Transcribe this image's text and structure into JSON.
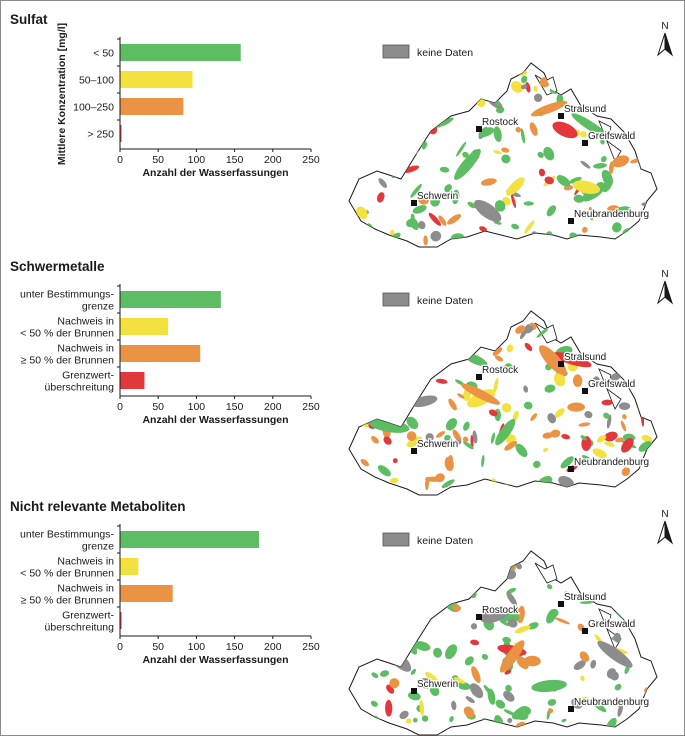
{
  "colors": {
    "green": "#5dbd63",
    "yellow": "#f2e13e",
    "orange": "#eb9345",
    "red": "#e2383b",
    "grey": "#8d8d8d"
  },
  "map_labels": {
    "legend": "keine Daten",
    "north": "N",
    "cities": [
      "Stralsund",
      "Rostock",
      "Greifswald",
      "Schwerin",
      "Neubrandenburg"
    ]
  },
  "chart_data": [
    {
      "type": "bar",
      "orientation": "horizontal",
      "title": "Sulfat",
      "xlabel": "Anzahl der Wasserfassungen",
      "ylabel": "Mittlere Konzentration [mg/l]",
      "categories": [
        "< 50",
        "50–100",
        "100–250",
        "> 250"
      ],
      "values": [
        158,
        95,
        83,
        2
      ],
      "colors": [
        "#5dbd63",
        "#f2e13e",
        "#eb9345",
        "#e2383b"
      ],
      "xlim": [
        0,
        250
      ],
      "xticks": [
        0,
        50,
        100,
        150,
        200,
        250
      ],
      "grid": false
    },
    {
      "type": "bar",
      "orientation": "horizontal",
      "title": "Schwermetalle",
      "xlabel": "Anzahl der Wasserfassungen",
      "ylabel": "",
      "categories": [
        "unter Bestimmungs-\ngrenze",
        "Nachweis in\n< 50 % der Brunnen",
        "Nachweis in\n≥ 50 % der Brunnen",
        "Grenzwert-\nüberschreitung"
      ],
      "values": [
        132,
        63,
        105,
        32
      ],
      "colors": [
        "#5dbd63",
        "#f2e13e",
        "#eb9345",
        "#e2383b"
      ],
      "xlim": [
        0,
        250
      ],
      "xticks": [
        0,
        50,
        100,
        150,
        200,
        250
      ],
      "grid": false
    },
    {
      "type": "bar",
      "orientation": "horizontal",
      "title": "Nicht relevante Metaboliten",
      "xlabel": "Anzahl der Wasserfassungen",
      "ylabel": "",
      "categories": [
        "unter Bestimmungs-\ngrenze",
        "Nachweis in\n< 50 % der Brunnen",
        "Nachweis in\n≥ 50 % der Brunnen",
        "Grenzwert-\nüberschreitung"
      ],
      "values": [
        182,
        24,
        69,
        2
      ],
      "colors": [
        "#5dbd63",
        "#f2e13e",
        "#eb9345",
        "#e2383b"
      ],
      "xlim": [
        0,
        250
      ],
      "xticks": [
        0,
        50,
        100,
        150,
        200,
        250
      ],
      "grid": false
    }
  ]
}
